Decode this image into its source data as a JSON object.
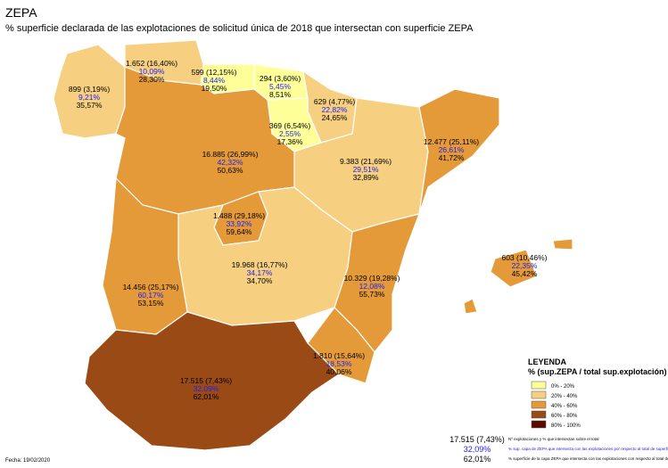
{
  "title": "ZEPA",
  "subtitle": "% superficie declarada de las explotaciones de solicitud única de 2018 que intersectan con superficie ZEPA",
  "legend": {
    "title": "LEYENDA",
    "subtitle": "% (sup.ZEPA / total sup.explotación)",
    "items": [
      {
        "label": "0% - 20%",
        "color": "#ffff99"
      },
      {
        "label": "20% - 40%",
        "color": "#f6cf80"
      },
      {
        "label": "40% - 60%",
        "color": "#e49a38"
      },
      {
        "label": "60% - 80%",
        "color": "#9a4a14"
      },
      {
        "label": "80% - 100%",
        "color": "#5a0a00"
      }
    ]
  },
  "regions": [
    {
      "lines": [
        "899 (3,19%)",
        "9,21%",
        "35,57%"
      ],
      "class": 1
    },
    {
      "lines": [
        "1.652 (16,40%)",
        "10,09%",
        "28,30%"
      ],
      "class": 1
    },
    {
      "lines": [
        "599 (12,15%)",
        "8,44%",
        "19,50%"
      ],
      "class": 0
    },
    {
      "lines": [
        "294 (3,60%)",
        "5,45%",
        "8,51%"
      ],
      "class": 0
    },
    {
      "lines": [
        "629 (4,77%)",
        "22,82%",
        "24,65%"
      ],
      "class": 1
    },
    {
      "lines": [
        "369 (6,54%)",
        "2,55%",
        "17,36%"
      ],
      "class": 0
    },
    {
      "lines": [
        "9.383 (21,69%)",
        "29,51%",
        "32,89%"
      ],
      "class": 1
    },
    {
      "lines": [
        "12.477 (25,11%)",
        "26,61%",
        "41,72%"
      ],
      "class": 2
    },
    {
      "lines": [
        "16.885 (26,99%)",
        "42,32%",
        "50,63%"
      ],
      "class": 2
    },
    {
      "lines": [
        "1.488 (29,18%)",
        "33,92%",
        "59,64%"
      ],
      "class": 2
    },
    {
      "lines": [
        "19.968 (16,77%)",
        "34,17%",
        "34,70%"
      ],
      "class": 1
    },
    {
      "lines": [
        "10.329 (19,28%)",
        "12,08%",
        "55,73%"
      ],
      "class": 2
    },
    {
      "lines": [
        "14.456 (25,17%)",
        "60,17%",
        "53,15%"
      ],
      "class": 2
    },
    {
      "lines": [
        "1.810 (15,64%)",
        "18,53%",
        "40,06%"
      ],
      "class": 2
    },
    {
      "lines": [
        "17.515 (7,43%)",
        "32,09%",
        "62,01%"
      ],
      "class": 3
    },
    {
      "lines": [
        "603 (10,46%)",
        "22,35%",
        "45,42%"
      ],
      "class": 2
    }
  ],
  "explanation": {
    "lines": [
      "17.515 (7,43%)",
      "32,09%",
      "62,01%"
    ],
    "notes": [
      "Nº explotaciones y % que intersectan sobre el total",
      "% sup. capa de ZEPA que intersecta con las explotaciones por respecto al total de superficie terrestre de la capa ZEPA en esa CA",
      "% superficie de la capa ZEPA que intersecta con las explotaciones con respecto al total de superficie de esas explotaciones"
    ]
  },
  "date": "Fecha: 19/02/2020"
}
